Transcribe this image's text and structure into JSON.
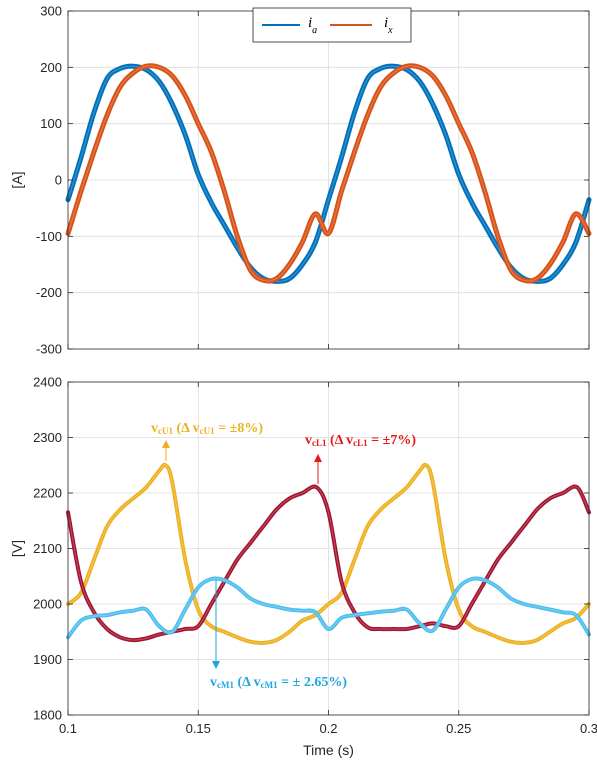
{
  "chart_data": [
    {
      "type": "line",
      "ylabel": "[A]",
      "xlabel": "",
      "xlim": [
        0.1,
        0.3
      ],
      "ylim": [
        -300,
        300
      ],
      "yticks": [
        "300",
        "200",
        "100",
        "0",
        "-100",
        "-200",
        "-300"
      ],
      "grid": true,
      "legend_position": "top-center",
      "series": [
        {
          "name": "i_a",
          "legend_main": "i",
          "legend_sub": "a",
          "color": "#0072BD",
          "x": [
            0.1,
            0.105,
            0.11,
            0.115,
            0.12,
            0.125,
            0.13,
            0.135,
            0.14,
            0.145,
            0.15,
            0.155,
            0.16,
            0.165,
            0.17,
            0.175,
            0.18,
            0.185,
            0.19,
            0.195,
            0.2,
            0.205,
            0.21,
            0.215,
            0.22,
            0.225,
            0.23,
            0.235,
            0.24,
            0.245,
            0.25,
            0.255,
            0.26,
            0.265,
            0.27,
            0.275,
            0.28,
            0.285,
            0.29,
            0.295,
            0.3
          ],
          "values": [
            -35,
            40,
            120,
            180,
            198,
            202,
            196,
            175,
            135,
            80,
            10,
            -40,
            -80,
            -120,
            -155,
            -175,
            -180,
            -175,
            -150,
            -110,
            -35,
            40,
            120,
            180,
            198,
            202,
            196,
            175,
            135,
            80,
            10,
            -40,
            -80,
            -120,
            -155,
            -175,
            -180,
            -175,
            -150,
            -110,
            -35
          ]
        },
        {
          "name": "i_x",
          "legend_main": "i",
          "legend_sub": "x",
          "color": "#D95319",
          "x": [
            0.1,
            0.105,
            0.11,
            0.115,
            0.12,
            0.125,
            0.13,
            0.135,
            0.14,
            0.145,
            0.15,
            0.155,
            0.16,
            0.165,
            0.17,
            0.175,
            0.18,
            0.185,
            0.19,
            0.195,
            0.2,
            0.205,
            0.21,
            0.215,
            0.22,
            0.225,
            0.23,
            0.235,
            0.24,
            0.245,
            0.25,
            0.255,
            0.26,
            0.265,
            0.27,
            0.275,
            0.28,
            0.285,
            0.29,
            0.295,
            0.3
          ],
          "values": [
            -95,
            -20,
            50,
            115,
            165,
            190,
            202,
            200,
            185,
            150,
            100,
            50,
            -20,
            -100,
            -160,
            -178,
            -175,
            -150,
            -110,
            -60,
            -95,
            -20,
            50,
            115,
            165,
            190,
            202,
            200,
            185,
            150,
            100,
            50,
            -20,
            -100,
            -160,
            -178,
            -175,
            -150,
            -110,
            -60,
            -95
          ]
        }
      ]
    },
    {
      "type": "line",
      "xlabel": "Time (s)",
      "ylabel": "[V]",
      "xlim": [
        0.1,
        0.3
      ],
      "ylim": [
        1800,
        2400
      ],
      "xticks": [
        "0.1",
        "0.15",
        "0.2",
        "0.25",
        "0.3"
      ],
      "yticks": [
        "2400",
        "2300",
        "2200",
        "2100",
        "2000",
        "1900",
        "1800"
      ],
      "grid": true,
      "series": [
        {
          "name": "v_cU1",
          "color": "#EDB120",
          "x": [
            0.1,
            0.105,
            0.11,
            0.115,
            0.12,
            0.125,
            0.13,
            0.135,
            0.1375,
            0.14,
            0.145,
            0.15,
            0.155,
            0.16,
            0.165,
            0.17,
            0.175,
            0.18,
            0.185,
            0.19,
            0.195,
            0.2,
            0.205,
            0.21,
            0.215,
            0.22,
            0.225,
            0.23,
            0.235,
            0.2375,
            0.24,
            0.245,
            0.25,
            0.255,
            0.26,
            0.265,
            0.27,
            0.275,
            0.28,
            0.285,
            0.29,
            0.295,
            0.3
          ],
          "values": [
            2000,
            2020,
            2080,
            2140,
            2170,
            2190,
            2210,
            2240,
            2250,
            2220,
            2080,
            1990,
            1960,
            1950,
            1940,
            1932,
            1930,
            1935,
            1950,
            1970,
            1980,
            2000,
            2020,
            2080,
            2140,
            2170,
            2190,
            2210,
            2240,
            2250,
            2220,
            2080,
            1990,
            1960,
            1950,
            1940,
            1932,
            1930,
            1935,
            1950,
            1965,
            1975,
            2000
          ]
        },
        {
          "name": "v_cL1",
          "color": "#A2142F",
          "x": [
            0.1,
            0.105,
            0.11,
            0.115,
            0.12,
            0.125,
            0.13,
            0.135,
            0.14,
            0.145,
            0.15,
            0.155,
            0.16,
            0.165,
            0.17,
            0.175,
            0.18,
            0.185,
            0.19,
            0.1955,
            0.2,
            0.205,
            0.21,
            0.215,
            0.22,
            0.225,
            0.23,
            0.235,
            0.24,
            0.245,
            0.25,
            0.255,
            0.26,
            0.265,
            0.27,
            0.275,
            0.28,
            0.285,
            0.29,
            0.2955,
            0.3
          ],
          "values": [
            2165,
            2040,
            1985,
            1955,
            1940,
            1935,
            1938,
            1945,
            1950,
            1955,
            1960,
            2000,
            2040,
            2080,
            2110,
            2140,
            2170,
            2190,
            2200,
            2210,
            2165,
            2040,
            1985,
            1958,
            1955,
            1955,
            1955,
            1960,
            1965,
            1960,
            1960,
            2000,
            2040,
            2080,
            2110,
            2140,
            2170,
            2190,
            2200,
            2210,
            2165
          ]
        },
        {
          "name": "v_cM1",
          "color": "#4DBEEE",
          "x": [
            0.1,
            0.105,
            0.11,
            0.115,
            0.12,
            0.125,
            0.13,
            0.135,
            0.14,
            0.145,
            0.15,
            0.155,
            0.16,
            0.165,
            0.17,
            0.175,
            0.18,
            0.185,
            0.19,
            0.195,
            0.2,
            0.205,
            0.21,
            0.215,
            0.22,
            0.225,
            0.23,
            0.235,
            0.24,
            0.245,
            0.25,
            0.255,
            0.26,
            0.265,
            0.27,
            0.275,
            0.28,
            0.285,
            0.29,
            0.295,
            0.3
          ],
          "values": [
            1940,
            1970,
            1978,
            1980,
            1985,
            1988,
            1990,
            1960,
            1950,
            1990,
            2030,
            2045,
            2043,
            2030,
            2010,
            2000,
            1995,
            1990,
            1988,
            1985,
            1955,
            1975,
            1980,
            1983,
            1986,
            1988,
            1990,
            1965,
            1952,
            1990,
            2030,
            2045,
            2043,
            2030,
            2010,
            2000,
            1995,
            1990,
            1985,
            1980,
            1945
          ]
        }
      ],
      "annotations": [
        {
          "key": "cU1",
          "main": "v",
          "sub": "cU1",
          "mid": " (Δ v",
          "sub2": "cU1",
          "tail": " = ±8%)",
          "color": "#EDB120"
        },
        {
          "key": "cL1",
          "main": "v",
          "sub": "cL1",
          "mid": " (Δ v",
          "sub2": "cL1",
          "tail": " = ±7%)",
          "color": "#E8171A"
        },
        {
          "key": "cM1",
          "main": "v",
          "sub": "cM1",
          "mid": " (Δ v",
          "sub2": "cM1",
          "tail": " = ± 2.65%)",
          "color": "#1FA6DA"
        }
      ]
    }
  ]
}
